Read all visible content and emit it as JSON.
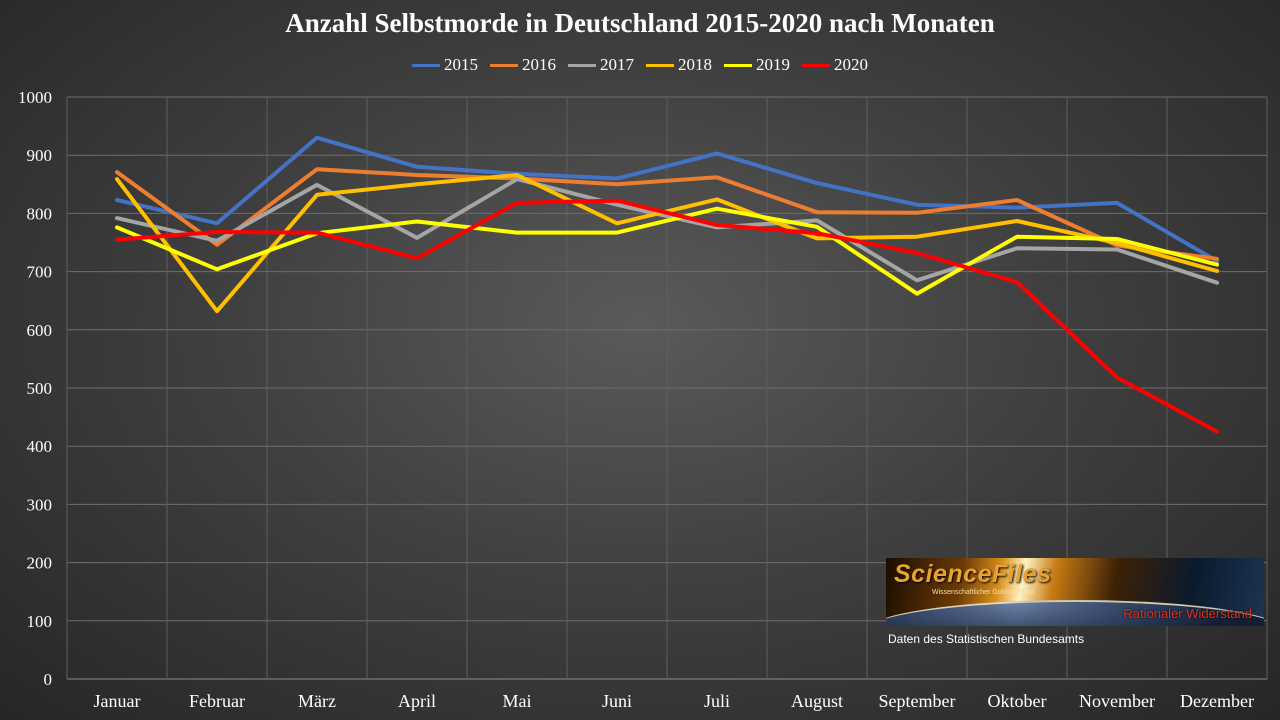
{
  "chart_data": {
    "type": "line",
    "title": "Anzahl Selbstmorde in Deutschland 2015-2020 nach Monaten",
    "xlabel": "",
    "ylabel": "",
    "categories": [
      "Januar",
      "Februar",
      "März",
      "April",
      "Mai",
      "Juni",
      "Juli",
      "August",
      "September",
      "Oktober",
      "November",
      "Dezember"
    ],
    "ylim": [
      0,
      1000
    ],
    "yticks": [
      0,
      100,
      200,
      300,
      400,
      500,
      600,
      700,
      800,
      900,
      1000
    ],
    "grid": true,
    "legend_position": "top",
    "series": [
      {
        "name": "2015",
        "color": "#4472c4",
        "values": [
          823,
          783,
          930,
          880,
          868,
          860,
          903,
          852,
          815,
          810,
          818,
          718
        ]
      },
      {
        "name": "2016",
        "color": "#ed7d31",
        "values": [
          871,
          746,
          876,
          866,
          860,
          850,
          862,
          802,
          801,
          823,
          745,
          722
        ]
      },
      {
        "name": "2017",
        "color": "#a5a5a5",
        "values": [
          792,
          753,
          849,
          758,
          859,
          815,
          776,
          788,
          685,
          740,
          738,
          681
        ]
      },
      {
        "name": "2018",
        "color": "#ffc000",
        "values": [
          859,
          632,
          832,
          850,
          866,
          783,
          824,
          757,
          760,
          787,
          749,
          701
        ]
      },
      {
        "name": "2019",
        "color": "#ffff00",
        "values": [
          776,
          704,
          766,
          786,
          767,
          767,
          808,
          777,
          662,
          760,
          756,
          712
        ]
      },
      {
        "name": "2020",
        "color": "#ff0000",
        "values": [
          755,
          768,
          767,
          723,
          818,
          822,
          780,
          766,
          732,
          682,
          518,
          425
        ]
      }
    ]
  },
  "logo": {
    "main": "ScienceFiles",
    "tagline": "Wissenschaftlicher Goldstandard",
    "right": "Rationaler Widerstand"
  },
  "source_note": "Daten des Statistischen Bundesamts"
}
